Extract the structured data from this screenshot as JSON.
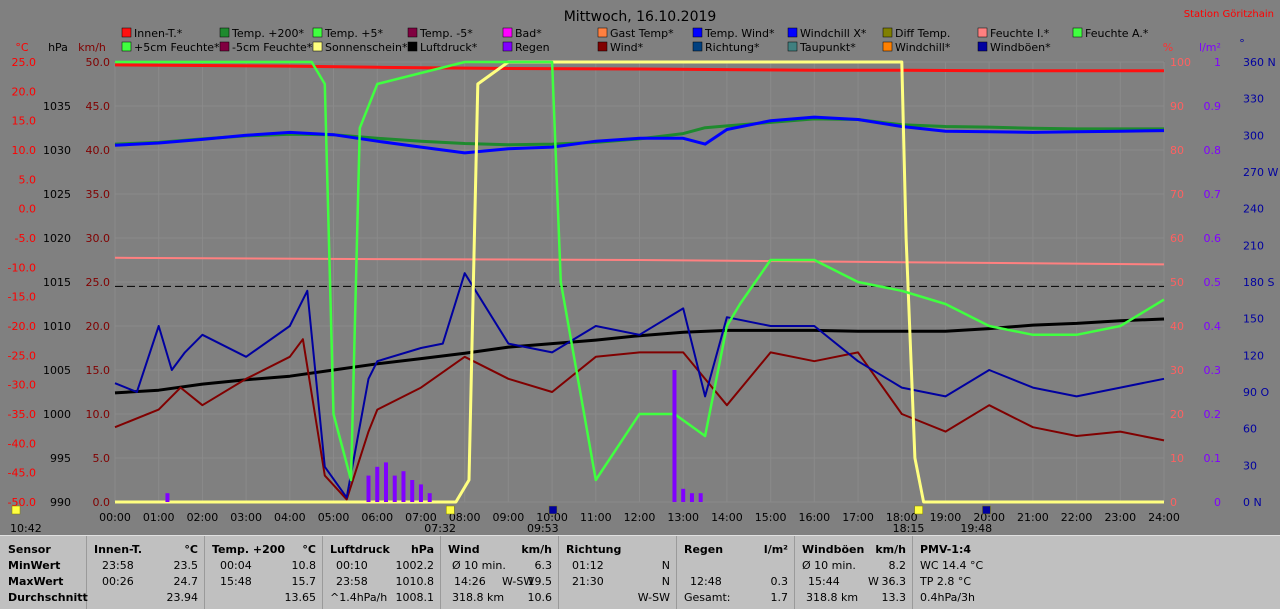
{
  "title": "Mittwoch, 16.10.2019",
  "station": "Station Göritzhain",
  "legend": [
    {
      "label": "Innen-T.*",
      "color": "#ff1010"
    },
    {
      "label": "Temp. +200*",
      "color": "#1e8a2e"
    },
    {
      "label": "Temp. +5*",
      "color": "#40ff40"
    },
    {
      "label": "Temp. -5*",
      "color": "#800040"
    },
    {
      "label": "Bad*",
      "color": "#ff00ff"
    },
    {
      "label": "Gast Temp*",
      "color": "#ff8040"
    },
    {
      "label": "Temp. Wind*",
      "color": "#0000ff"
    },
    {
      "label": "Windchill X*",
      "color": "#0000ff"
    },
    {
      "label": "Diff Temp.",
      "color": "#808000"
    },
    {
      "label": "Feuchte I.*",
      "color": "#ff8080"
    },
    {
      "label": "Feuchte A.*",
      "color": "#40ff40"
    },
    {
      "label": "+5cm Feuchte*",
      "color": "#40ff40"
    },
    {
      "label": "-5cm Feuchte*",
      "color": "#800040"
    },
    {
      "label": "Sonnenschein*",
      "color": "#ffff80"
    },
    {
      "label": "Luftdruck*",
      "color": "#000000"
    },
    {
      "label": "Regen",
      "color": "#8000ff"
    },
    {
      "label": "Wind*",
      "color": "#800000"
    },
    {
      "label": "Richtung*",
      "color": "#004080"
    },
    {
      "label": "Taupunkt*",
      "color": "#408080"
    },
    {
      "label": "Windchill*",
      "color": "#ff8000"
    },
    {
      "label": "Windböen*",
      "color": "#0000a0"
    }
  ],
  "units": {
    "c": "°C",
    "hpa": "hPa",
    "kmh": "km/h",
    "pct": "%",
    "lm2": "l/m²",
    "deg": "°"
  },
  "axes": {
    "temp": [
      "25.0",
      "20.0",
      "15.0",
      "10.0",
      "5.0",
      "0.0",
      "-5.0",
      "-10.0",
      "-15.0",
      "-20.0",
      "-25.0",
      "-30.0",
      "-35.0",
      "-40.0",
      "-45.0",
      "-50.0"
    ],
    "hpa": [
      "1035",
      "1030",
      "1025",
      "1020",
      "1015",
      "1010",
      "1005",
      "1000",
      "995",
      "990"
    ],
    "kmh": [
      "50.0",
      "45.0",
      "40.0",
      "35.0",
      "30.0",
      "25.0",
      "20.0",
      "15.0",
      "10.0",
      "5.0",
      "0.0"
    ],
    "pct": [
      "100",
      "90",
      "80",
      "70",
      "60",
      "50",
      "40",
      "30",
      "20",
      "10",
      "0"
    ],
    "rain": [
      "1",
      "0.9",
      "0.8",
      "0.7",
      "0.6",
      "0.5",
      "0.4",
      "0.3",
      "0.2",
      "0.1",
      "0"
    ],
    "dir": [
      "360 N",
      "330",
      "300",
      "270 W",
      "240",
      "210",
      "180 S",
      "150",
      "120",
      "90 O",
      "60",
      "30",
      "0 N"
    ],
    "time": [
      "00:00",
      "01:00",
      "02:00",
      "03:00",
      "04:00",
      "05:00",
      "06:00",
      "07:00",
      "08:00",
      "09:00",
      "10:00",
      "11:00",
      "12:00",
      "13:00",
      "14:00",
      "15:00",
      "16:00",
      "17:00",
      "18:00",
      "19:00",
      "20:00",
      "21:00",
      "22:00",
      "23:00",
      "24:00"
    ]
  },
  "markers": [
    {
      "time": "10:42",
      "icon": "sunrise"
    },
    {
      "time": "07:32",
      "icon": "sunrise"
    },
    {
      "time": "09:53",
      "icon": "moonset"
    },
    {
      "time": "18:15",
      "icon": "sunset"
    },
    {
      "time": "19:48",
      "icon": "moonrise"
    }
  ],
  "chart_data": {
    "type": "line",
    "title": "Mittwoch, 16.10.2019",
    "x_range": [
      "00:00",
      "24:00"
    ],
    "series": [
      {
        "name": "Innen-T.*",
        "axis": "temp",
        "x": [
          0,
          4,
          6,
          9,
          12,
          14,
          16,
          18,
          20,
          22,
          24
        ],
        "y": [
          24.5,
          24.3,
          24.1,
          23.9,
          23.8,
          23.7,
          23.6,
          23.6,
          23.5,
          23.5,
          23.5
        ]
      },
      {
        "name": "Temp. +200*",
        "axis": "temp",
        "x": [
          0,
          1,
          2,
          3,
          4,
          5,
          6,
          7,
          8,
          9,
          10,
          11,
          12,
          13,
          13.5,
          14,
          15,
          16,
          17,
          18,
          19,
          20,
          21,
          22,
          23,
          24
        ],
        "y": [
          11.0,
          11.3,
          11.9,
          12.4,
          12.7,
          12.6,
          12.0,
          11.5,
          11.1,
          10.9,
          11.0,
          11.3,
          11.9,
          12.8,
          13.8,
          14.1,
          14.7,
          15.3,
          15.2,
          14.3,
          14.0,
          13.9,
          13.7,
          13.6,
          13.6,
          13.6
        ]
      },
      {
        "name": "Temp. Wind*",
        "axis": "temp",
        "x": [
          0,
          1,
          2,
          3,
          4,
          5,
          6,
          7,
          8,
          9,
          10,
          11,
          12,
          13,
          13.5,
          14,
          15,
          16,
          17,
          18,
          19,
          20,
          21,
          22,
          23,
          24
        ],
        "y": [
          10.8,
          11.2,
          11.8,
          12.5,
          13.0,
          12.6,
          11.5,
          10.5,
          9.5,
          10.2,
          10.5,
          11.5,
          12.0,
          12.0,
          11.0,
          13.5,
          15.0,
          15.6,
          15.2,
          14.0,
          13.2,
          13.1,
          13.0,
          13.1,
          13.2,
          13.3
        ]
      },
      {
        "name": "Feuchte I.*",
        "axis": "pct",
        "x": [
          0,
          6,
          12,
          18,
          24
        ],
        "y": [
          55.5,
          55.2,
          55.0,
          54.5,
          54.0
        ]
      },
      {
        "name": "Luftdruck*",
        "axis": "hpa",
        "x": [
          0,
          1,
          2,
          3,
          4,
          5,
          6,
          7,
          8,
          9,
          10,
          11,
          12,
          13,
          14,
          15,
          16,
          17,
          18,
          19,
          20,
          21,
          22,
          23,
          24
        ],
        "y": [
          1002.4,
          1002.7,
          1003.4,
          1003.9,
          1004.3,
          1005.0,
          1005.7,
          1006.3,
          1006.9,
          1007.6,
          1008.0,
          1008.4,
          1008.9,
          1009.3,
          1009.5,
          1009.5,
          1009.5,
          1009.4,
          1009.4,
          1009.4,
          1009.7,
          1010.1,
          1010.3,
          1010.6,
          1010.8
        ]
      },
      {
        "name": "Wind*",
        "axis": "kmh",
        "x": [
          0,
          1,
          1.5,
          2,
          3,
          4,
          4.3,
          4.8,
          5.3,
          5.8,
          6,
          7,
          8,
          9,
          10,
          11,
          12,
          13,
          14,
          15,
          16,
          17,
          18,
          19,
          20,
          21,
          22,
          23,
          24
        ],
        "y": [
          8.5,
          10.5,
          13.0,
          11.0,
          14.0,
          16.5,
          18.5,
          3.0,
          0.3,
          8.0,
          10.5,
          13.0,
          16.5,
          14.0,
          12.5,
          16.5,
          17.0,
          17.0,
          11.0,
          17.0,
          16.0,
          17.0,
          10.0,
          8.0,
          11.0,
          8.5,
          7.5,
          8.0,
          7.0
        ]
      },
      {
        "name": "Windböen*",
        "axis": "kmh",
        "x": [
          0,
          0.5,
          1,
          1.3,
          1.6,
          2,
          3,
          4,
          4.4,
          4.8,
          5.3,
          5.8,
          6,
          7,
          7.5,
          8,
          9,
          10,
          11,
          12,
          13,
          13.5,
          14,
          15,
          16,
          17,
          18,
          19,
          20,
          21,
          22,
          23,
          24
        ],
        "y": [
          13.5,
          12.5,
          20.0,
          15.0,
          17.0,
          19.0,
          16.5,
          20.0,
          24.0,
          4.0,
          0.5,
          14.0,
          16.0,
          17.5,
          18.0,
          26.0,
          18.0,
          17.0,
          20.0,
          19.0,
          22.0,
          12.0,
          21.0,
          20.0,
          20.0,
          16.0,
          13.0,
          12.0,
          15.0,
          13.0,
          12.0,
          13.0,
          14.0
        ]
      },
      {
        "name": "Sonnenschein*",
        "axis": "pct",
        "x": [
          0,
          7.8,
          8.1,
          8.3,
          9,
          10,
          12,
          14,
          16,
          17,
          18,
          18.1,
          18.3,
          18.5,
          24
        ],
        "y": [
          0,
          0,
          5,
          95,
          100,
          100,
          100,
          100,
          100,
          100,
          100,
          60,
          10,
          0,
          0
        ]
      },
      {
        "name": "+5cm Feuchte*",
        "axis": "pct",
        "x": [
          0,
          4.5,
          4.8,
          5.0,
          5.4,
          5.6,
          6.0,
          8,
          9,
          10,
          10.2,
          11,
          12,
          12.8,
          13.5,
          14,
          14.3,
          15,
          16,
          17,
          18,
          19,
          20,
          21,
          22,
          23,
          24
        ],
        "y": [
          100,
          100,
          95,
          20,
          5,
          85,
          95,
          100,
          100,
          100,
          50,
          5,
          20,
          20,
          15,
          40,
          45,
          55,
          55,
          50,
          48,
          45,
          40,
          38,
          38,
          40,
          46
        ]
      },
      {
        "name": "Regen",
        "axis": "rain",
        "x": [
          1.2,
          5.8,
          6.0,
          6.2,
          6.4,
          6.6,
          6.8,
          7.0,
          7.2,
          12.8,
          13.0,
          13.2,
          13.4
        ],
        "y": [
          0.02,
          0.06,
          0.08,
          0.09,
          0.06,
          0.07,
          0.05,
          0.04,
          0.02,
          0.3,
          0.03,
          0.02,
          0.02
        ]
      }
    ]
  },
  "table": {
    "sensor_title": "Sensor",
    "rows": [
      "MinWert",
      "MaxWert",
      "Durchschnitt"
    ],
    "innen": {
      "title": "Innen-T.",
      "unit": "°C",
      "min_time": "23:58",
      "min": "23.5",
      "max_time": "00:26",
      "max": "24.7",
      "avg": "23.94"
    },
    "temp": {
      "title": "Temp. +200",
      "unit": "°C",
      "min_time": "00:04",
      "min": "10.8",
      "max_time": "15:48",
      "max": "15.7",
      "avg": "13.65"
    },
    "druck": {
      "title": "Luftdruck",
      "unit": "hPa",
      "min_time": "00:10",
      "min": "1002.2",
      "max_time": "23:58",
      "max": "1010.8",
      "trend": "^1.4hPa/h",
      "avg": "1008.1"
    },
    "wind": {
      "title": "Wind",
      "unit": "km/h",
      "r1a": "Ø 10 min.",
      "r1b": "6.3",
      "r2a": "14:26",
      "r2m": "W-SW",
      "r2b": "19.5",
      "r3a": "318.8 km",
      "r3b": "10.6"
    },
    "richtung": {
      "title": "Richtung",
      "r1a": "01:12",
      "r1b": "N",
      "r2a": "21:30",
      "r2b": "N",
      "r3b": "W-SW"
    },
    "regen": {
      "title": "Regen",
      "unit": "l/m²",
      "r2a": "12:48",
      "r2b": "0.3",
      "r3a": "Gesamt:",
      "r3b": "1.7"
    },
    "boeen": {
      "title": "Windböen",
      "unit": "km/h",
      "r1a": "Ø 10 min.",
      "r1b": "8.2",
      "r2a": "15:44",
      "r2m": "W",
      "r2b": "36.3",
      "r3a": "318.8 km",
      "r3b": "13.3"
    },
    "pmv": {
      "title": "PMV-1:4",
      "r1": "WC 14.4 °C",
      "r2": "TP 2.8 °C",
      "r3": "0.4hPa/3h"
    }
  }
}
